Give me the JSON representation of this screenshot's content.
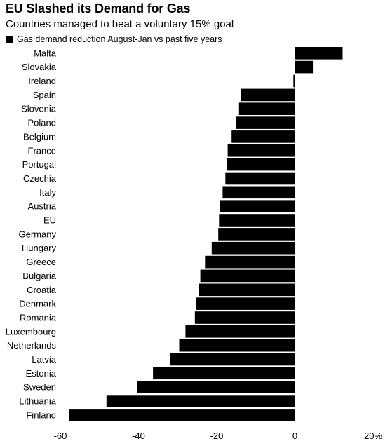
{
  "chart_data": {
    "type": "bar",
    "orientation": "horizontal",
    "title": "EU Slashed its Demand for Gas",
    "subtitle": "Countries managed to beat a voluntary 15% goal",
    "legend": [
      "Gas demand reduction August-Jan vs past five years"
    ],
    "legend_position": "top-left",
    "categories": [
      "Malta",
      "Slovakia",
      "Ireland",
      "Spain",
      "Slovenia",
      "Poland",
      "Belgium",
      "France",
      "Portugal",
      "Czechia",
      "Italy",
      "Austria",
      "EU",
      "Germany",
      "Hungary",
      "Greece",
      "Bulgaria",
      "Croatia",
      "Denmark",
      "Romania",
      "Luxembourg",
      "Netherlands",
      "Latvia",
      "Estonia",
      "Sweden",
      "Lithuania",
      "Finland"
    ],
    "values": [
      12.2,
      4.6,
      -0.4,
      -13.8,
      -14.3,
      -15.0,
      -16.2,
      -17.2,
      -17.4,
      -17.8,
      -18.5,
      -19.1,
      -19.4,
      -19.6,
      -21.3,
      -23.0,
      -24.2,
      -24.5,
      -25.3,
      -25.6,
      -28.0,
      -29.6,
      -32.0,
      -36.3,
      -40.4,
      -48.2,
      -57.7
    ],
    "xlim": [
      -60,
      20
    ],
    "xticks": [
      -60,
      -40,
      -20,
      0,
      20
    ],
    "xtick_labels": [
      "-60",
      "-40",
      "-20",
      "0",
      "20%"
    ],
    "bar_color": "#000000",
    "grid": false
  }
}
